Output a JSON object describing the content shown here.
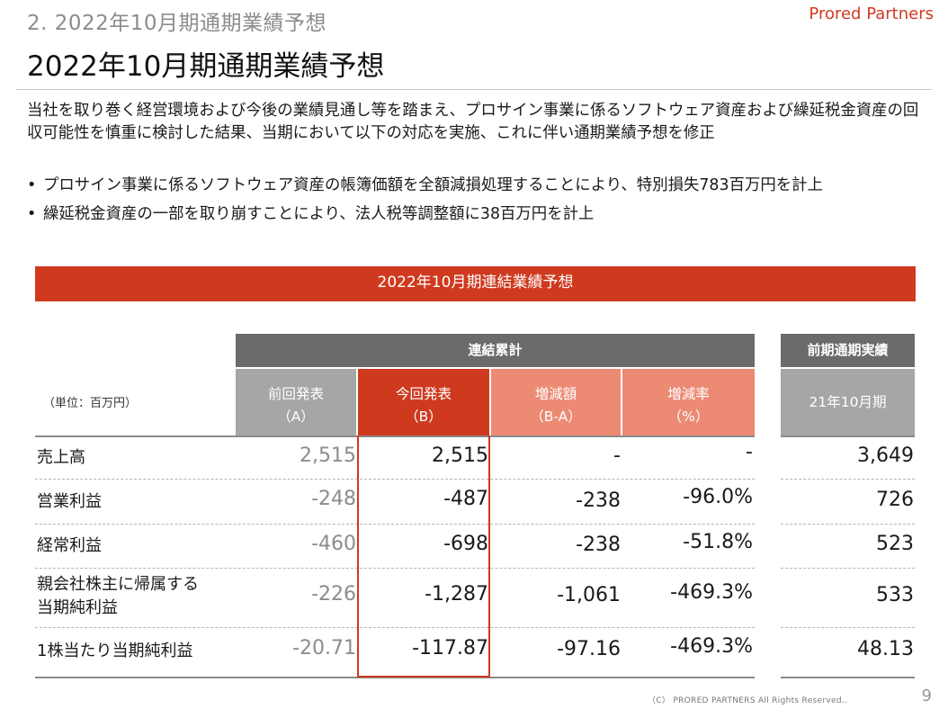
{
  "header": {
    "section_label": "2.  2022年10月期通期業績予想",
    "brand": "Prored Partners",
    "page_title": "2022年10月期通期業績予想"
  },
  "intro": "当社を取り巻く経営環境および今後の業績見通し等を踏まえ、プロサイン事業に係るソフトウェア資産および繰延税金資産の回収可能性を慎重に検討した結果、当期において以下の対応を実施、これに伴い通期業績予想を修正",
  "bullets": [
    "プロサイン事業に係るソフトウェア資産の帳簿価額を全額減損処理することにより、特別損失783百万円を計上",
    "繰延税金資産の一部を取り崩すことにより、法人税等調整額に38百万円を計上"
  ],
  "table": {
    "banner": "2022年10月期連結業績予想",
    "group_consolidated": "連結累計",
    "group_previous": "前期通期実績",
    "unit": "（単位：百万円）",
    "columns": {
      "a_line1": "前回発表",
      "a_line2": "（A）",
      "b_line1": "今回発表",
      "b_line2": "（B）",
      "diff_line1": "増減額",
      "diff_line2": "（B-A）",
      "rate_line1": "増減率",
      "rate_line2": "（%）",
      "prev": "21年10月期"
    },
    "rows": [
      {
        "label": "売上高",
        "a": "2,515",
        "b": "2,515",
        "diff": "-",
        "rate": "-",
        "prev": "3,649"
      },
      {
        "label": "営業利益",
        "a": "-248",
        "b": "-487",
        "diff": "-238",
        "rate": "-96.0%",
        "prev": "726"
      },
      {
        "label": "経常利益",
        "a": "-460",
        "b": "-698",
        "diff": "-238",
        "rate": "-51.8%",
        "prev": "523"
      },
      {
        "label_line1": "親会社株主に帰属する",
        "label_line2": "当期純利益",
        "a": "-226",
        "b": "-1,287",
        "diff": "-1,061",
        "rate": "-469.3%",
        "prev": "533"
      },
      {
        "label": "1株当たり当期純利益",
        "a": "-20.71",
        "b": "-117.87",
        "diff": "-97.16",
        "rate": "-469.3%",
        "prev": "48.13"
      }
    ]
  },
  "footer": {
    "copyright": "（C） PRORED PARTNERS All Rights Reserved..",
    "page_number": "9"
  },
  "colors": {
    "accent": "#cf3a1f",
    "accent_light": "#ec8a74",
    "header_gray": "#6b6b6b",
    "subheader_gray": "#a6a6a6"
  }
}
